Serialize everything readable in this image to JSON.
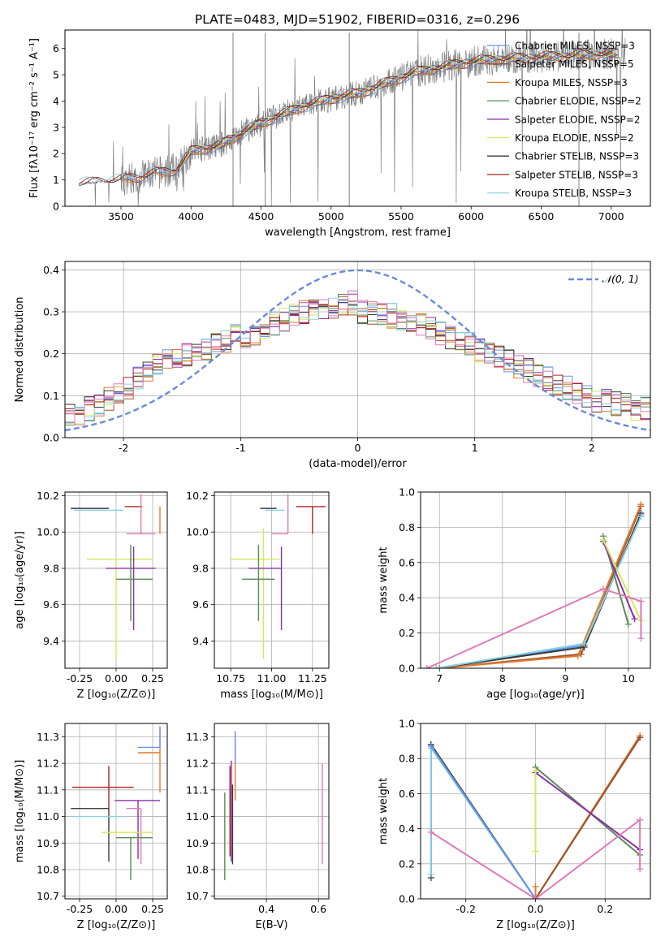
{
  "figure_title": "PLATE=0483, MJD=51902, FIBERID=0316, z=0.296",
  "colors": {
    "chabrier_miles": "#6495ed",
    "salpeter_miles": "#a0522d",
    "kroupa_miles": "#e07a2e",
    "chabrier_elodie": "#5b8a5b",
    "salpeter_elodie": "#8b2fa8",
    "kroupa_elodie": "#d4e85a",
    "chabrier_stelib": "#3a3a3a",
    "salpeter_stelib": "#b22222",
    "kroupa_stelib": "#89d2e0",
    "pink": "#e07ab8",
    "data": "#808080",
    "normal": "#6a8bd8",
    "grid": "#b0b0b0"
  },
  "chart_data": [
    {
      "type": "line",
      "panel": "spectrum",
      "title": "PLATE=0483, MJD=51902, FIBERID=0316, z=0.296",
      "xlabel": "wavelength [Angstrom, rest frame]",
      "ylabel": "Flux [fλ10⁻¹⁷ erg cm⁻² s⁻¹ A⁻¹]",
      "xlim": [
        3100,
        7280
      ],
      "ylim": [
        0,
        6.7
      ],
      "xticks": [
        3500,
        4000,
        4500,
        5000,
        5500,
        6000,
        6500,
        7000
      ],
      "yticks": [
        0,
        1,
        2,
        3,
        4,
        5,
        6
      ],
      "grid": false,
      "legend_position": "top-right",
      "continuum_wavelength": [
        3200,
        3500,
        3700,
        3900,
        4000,
        4200,
        4400,
        4600,
        4800,
        5000,
        5200,
        5400,
        5600,
        5800,
        6000,
        6200,
        6400,
        6600,
        6800,
        7000,
        7100
      ],
      "continuum_flux": [
        0.85,
        1.0,
        1.2,
        1.4,
        2.1,
        2.3,
        2.9,
        3.4,
        3.8,
        4.1,
        4.3,
        4.7,
        5.1,
        5.3,
        5.5,
        5.6,
        5.65,
        5.7,
        5.75,
        5.8,
        5.8
      ],
      "legend": [
        "Chabrier MILES, NSSP=3",
        "Salpeter MILES, NSSP=5",
        "Kroupa MILES, NSSP=3",
        "Chabrier ELODIE, NSSP=2",
        "Salpeter ELODIE, NSSP=2",
        "Kroupa ELODIE, NSSP=2",
        "Chabrier STELIB, NSSP=3",
        "Salpeter STELIB, NSSP=3",
        "Kroupa STELIB, NSSP=3"
      ]
    },
    {
      "type": "line",
      "panel": "residuals",
      "xlabel": "(data-model)/error",
      "ylabel": "Normed distribution",
      "xlim": [
        -2.5,
        2.5
      ],
      "ylim": [
        0,
        0.42
      ],
      "xticks": [
        -2,
        -1,
        0,
        1,
        2
      ],
      "yticks": [
        0.0,
        0.1,
        0.2,
        0.3,
        0.4
      ],
      "grid": true,
      "legend_position": "top-right",
      "legend": [
        "𝒩(0, 1)"
      ],
      "bin_width": 0.1,
      "base_shape": [
        0.05,
        0.06,
        0.07,
        0.08,
        0.09,
        0.11,
        0.12,
        0.14,
        0.16,
        0.17,
        0.18,
        0.19,
        0.2,
        0.2,
        0.21,
        0.22,
        0.23,
        0.24,
        0.24,
        0.25,
        0.26,
        0.27,
        0.28,
        0.29,
        0.3,
        0.3,
        0.31,
        0.31,
        0.32,
        0.32,
        0.3,
        0.3,
        0.29,
        0.29,
        0.28,
        0.28,
        0.27,
        0.26,
        0.25,
        0.24,
        0.23,
        0.22,
        0.21,
        0.2,
        0.19,
        0.18,
        0.17,
        0.16,
        0.15,
        0.14,
        0.13,
        0.12,
        0.11,
        0.1,
        0.09,
        0.09,
        0.08,
        0.08,
        0.07,
        0.07
      ]
    },
    {
      "type": "scatter",
      "panel": "age_vs_Z",
      "xlabel": "Z [log₁₀(Z/Z⊙)]",
      "ylabel": "age  [log₁₀(age/yr)]",
      "xlim": [
        -0.35,
        0.35
      ],
      "ylim": [
        9.25,
        10.22
      ],
      "xticks": [
        -0.25,
        0.0,
        0.25
      ],
      "yticks": [
        9.4,
        9.6,
        9.8,
        10.0,
        10.2
      ],
      "grid": true,
      "points": [
        {
          "x": -0.05,
          "y": 10.13,
          "xerr": [
            0.26,
            0.0
          ],
          "yerr": [
            0.0,
            0.0
          ],
          "color": "chabrier_stelib"
        },
        {
          "x": 0.05,
          "y": 10.12,
          "xerr": [
            0.34,
            0.0
          ],
          "yerr": [
            0.0,
            0.0
          ],
          "color": "kroupa_stelib"
        },
        {
          "x": 0.3,
          "y": 10.14,
          "xerr": [
            0.0,
            0.0
          ],
          "yerr": [
            0.15,
            0.0
          ],
          "color": "kroupa_miles"
        },
        {
          "x": 0.18,
          "y": 10.14,
          "xerr": [
            0.12,
            0.0
          ],
          "yerr": [
            0.0,
            0.0
          ],
          "color": "salpeter_stelib"
        },
        {
          "x": 0.17,
          "y": 9.99,
          "xerr": [
            0.1,
            0.1
          ],
          "yerr": [
            0.0,
            0.22
          ],
          "color": "pink"
        },
        {
          "x": 0.0,
          "y": 9.85,
          "xerr": [
            0.2,
            0.25
          ],
          "yerr": [
            0.55,
            0.0
          ],
          "color": "kroupa_elodie"
        },
        {
          "x": 0.12,
          "y": 9.8,
          "xerr": [
            0.19,
            0.15
          ],
          "yerr": [
            0.34,
            0.12
          ],
          "color": "salpeter_elodie"
        },
        {
          "x": 0.1,
          "y": 9.74,
          "xerr": [
            0.1,
            0.15
          ],
          "yerr": [
            0.23,
            0.19
          ],
          "color": "chabrier_elodie"
        }
      ]
    },
    {
      "type": "scatter",
      "panel": "age_vs_mass",
      "xlabel": "mass [log₁₀(M/M⊙)]",
      "ylabel": "",
      "xlim": [
        10.65,
        11.35
      ],
      "ylim": [
        9.25,
        10.22
      ],
      "xticks": [
        10.75,
        11.0,
        11.25
      ],
      "yticks": [
        9.4,
        9.6,
        9.8,
        10.0,
        10.2
      ],
      "grid": true,
      "points": [
        {
          "x": 11.03,
          "y": 10.13,
          "xerr": [
            0.1,
            0.0
          ],
          "yerr": [
            0.0,
            0.0
          ],
          "color": "chabrier_stelib"
        },
        {
          "x": 11.08,
          "y": 10.12,
          "xerr": [
            0.12,
            0.0
          ],
          "yerr": [
            0.0,
            0.0
          ],
          "color": "kroupa_stelib"
        },
        {
          "x": 11.25,
          "y": 10.14,
          "xerr": [
            0.1,
            0.08
          ],
          "yerr": [
            0.15,
            0.0
          ],
          "color": "salpeter_stelib"
        },
        {
          "x": 11.1,
          "y": 9.99,
          "xerr": [
            0.1,
            0.0
          ],
          "yerr": [
            0.0,
            0.22
          ],
          "color": "pink"
        },
        {
          "x": 10.95,
          "y": 9.85,
          "xerr": [
            0.2,
            0.1
          ],
          "yerr": [
            0.55,
            0.17
          ],
          "color": "kroupa_elodie"
        },
        {
          "x": 11.06,
          "y": 9.8,
          "xerr": [
            0.2,
            0.0
          ],
          "yerr": [
            0.34,
            0.12
          ],
          "color": "salpeter_elodie"
        },
        {
          "x": 10.92,
          "y": 9.74,
          "xerr": [
            0.1,
            0.1
          ],
          "yerr": [
            0.23,
            0.19
          ],
          "color": "chabrier_elodie"
        }
      ]
    },
    {
      "type": "line",
      "panel": "weight_vs_age",
      "xlabel": "age  [log₁₀(age/yr)]",
      "ylabel": "mass weight",
      "xlim": [
        6.7,
        10.35
      ],
      "ylim": [
        0,
        1.0
      ],
      "xticks": [
        7,
        8,
        9,
        10
      ],
      "yticks": [
        0.0,
        0.2,
        0.4,
        0.6,
        0.8,
        1.0
      ],
      "grid": true,
      "series": [
        {
          "color": "chabrier_miles",
          "x": [
            7.0,
            9.3,
            10.2
          ],
          "y": [
            0.0,
            0.13,
            0.87
          ]
        },
        {
          "color": "salpeter_miles",
          "x": [
            7.0,
            9.25,
            10.2
          ],
          "y": [
            0.0,
            0.08,
            0.92
          ]
        },
        {
          "color": "kroupa_miles",
          "x": [
            7.0,
            9.2,
            10.2
          ],
          "y": [
            0.0,
            0.07,
            0.93
          ]
        },
        {
          "color": "chabrier_stelib",
          "x": [
            6.95,
            9.3,
            10.2
          ],
          "y": [
            0.0,
            0.12,
            0.88
          ]
        },
        {
          "color": "kroupa_stelib",
          "x": [
            6.95,
            9.3,
            10.2
          ],
          "y": [
            0.0,
            0.14,
            0.86
          ]
        },
        {
          "color": "chabrier_elodie",
          "x": [
            9.6,
            10.0
          ],
          "y": [
            0.75,
            0.25
          ]
        },
        {
          "color": "salpeter_elodie",
          "x": [
            9.6,
            10.1
          ],
          "y": [
            0.72,
            0.28
          ]
        },
        {
          "color": "kroupa_elodie",
          "x": [
            9.6,
            10.2
          ],
          "y": [
            0.73,
            0.27
          ]
        },
        {
          "color": "pink",
          "x": [
            6.8,
            9.6,
            10.2,
            10.2
          ],
          "y": [
            0.0,
            0.45,
            0.38,
            0.17
          ]
        }
      ]
    },
    {
      "type": "scatter",
      "panel": "mass_vs_Z",
      "xlabel": "Z [log₁₀(Z/Z⊙)]",
      "ylabel": "mass [log₁₀(M/M⊙)]",
      "xlim": [
        -0.35,
        0.35
      ],
      "ylim": [
        10.69,
        11.35
      ],
      "xticks": [
        -0.25,
        0.0,
        0.25
      ],
      "yticks": [
        10.7,
        10.8,
        10.9,
        11.0,
        11.1,
        11.2,
        11.3
      ],
      "grid": true,
      "points": [
        {
          "x": 0.3,
          "y": 11.24,
          "xerr": [
            0.15,
            0.0
          ],
          "yerr": [
            0.15,
            0.1
          ],
          "color": "kroupa_miles"
        },
        {
          "x": 0.3,
          "y": 11.26,
          "xerr": [
            0.15,
            0.0
          ],
          "yerr": [
            0.0,
            0.07
          ],
          "color": "chabrier_miles"
        },
        {
          "x": -0.05,
          "y": 11.11,
          "xerr": [
            0.25,
            0.17
          ],
          "yerr": [
            0.08,
            0.08
          ],
          "color": "salpeter_stelib"
        },
        {
          "x": 0.15,
          "y": 11.06,
          "xerr": [
            0.16,
            0.15
          ],
          "yerr": [
            0.22,
            0.0
          ],
          "color": "salpeter_elodie"
        },
        {
          "x": -0.05,
          "y": 11.03,
          "xerr": [
            0.26,
            0.0
          ],
          "yerr": [
            0.2,
            0.0
          ],
          "color": "chabrier_stelib"
        },
        {
          "x": 0.17,
          "y": 11.03,
          "xerr": [
            0.1,
            0.0
          ],
          "yerr": [
            0.21,
            0.0
          ],
          "color": "pink"
        },
        {
          "x": 0.05,
          "y": 11.0,
          "xerr": [
            0.35,
            0.0
          ],
          "yerr": [
            0.0,
            0.0
          ],
          "color": "kroupa_stelib"
        },
        {
          "x": 0.05,
          "y": 10.94,
          "xerr": [
            0.15,
            0.2
          ],
          "yerr": [
            0.0,
            0.0
          ],
          "color": "kroupa_elodie"
        },
        {
          "x": 0.1,
          "y": 10.92,
          "xerr": [
            0.1,
            0.15
          ],
          "yerr": [
            0.16,
            0.0
          ],
          "color": "chabrier_elodie"
        }
      ]
    },
    {
      "type": "scatter",
      "panel": "mass_vs_EBV",
      "xlabel": "E(B-V)",
      "ylabel": "",
      "xlim": [
        0.2,
        0.64
      ],
      "ylim": [
        10.69,
        11.35
      ],
      "xticks": [
        0.4,
        0.6
      ],
      "yticks": [
        10.7,
        10.8,
        10.9,
        11.0,
        11.1,
        11.2,
        11.3
      ],
      "grid": true,
      "points": [
        {
          "x": 0.28,
          "y": 11.2,
          "xerr": [
            0.0,
            0.0
          ],
          "yerr": [
            0.14,
            0.12
          ],
          "color": "kroupa_miles"
        },
        {
          "x": 0.28,
          "y": 11.25,
          "xerr": [
            0.0,
            0.0
          ],
          "yerr": [
            0.05,
            0.07
          ],
          "color": "chabrier_miles"
        },
        {
          "x": 0.265,
          "y": 11.0,
          "xerr": [
            0.0,
            0.0
          ],
          "yerr": [
            0.17,
            0.21
          ],
          "color": "salpeter_elodie"
        },
        {
          "x": 0.26,
          "y": 11.0,
          "xerr": [
            0.0,
            0.0
          ],
          "yerr": [
            0.15,
            0.19
          ],
          "color": "salpeter_stelib"
        },
        {
          "x": 0.27,
          "y": 11.0,
          "xerr": [
            0.0,
            0.0
          ],
          "yerr": [
            0.18,
            0.12
          ],
          "color": "chabrier_stelib"
        },
        {
          "x": 0.24,
          "y": 10.92,
          "xerr": [
            0.0,
            0.0
          ],
          "yerr": [
            0.16,
            0.17
          ],
          "color": "chabrier_elodie"
        },
        {
          "x": 0.615,
          "y": 11.01,
          "xerr": [
            0.0,
            0.0
          ],
          "yerr": [
            0.19,
            0.19
          ],
          "color": "pink"
        }
      ]
    },
    {
      "type": "line",
      "panel": "weight_vs_Z",
      "xlabel": "Z [log₁₀(Z/Z⊙)]",
      "ylabel": "mass weight",
      "xlim": [
        -0.33,
        0.33
      ],
      "ylim": [
        0,
        1.0
      ],
      "xticks": [
        -0.2,
        0.0,
        0.2
      ],
      "yticks": [
        0.0,
        0.2,
        0.4,
        0.6,
        0.8,
        1.0
      ],
      "grid": true,
      "series": [
        {
          "color": "chabrier_stelib",
          "x": [
            -0.3,
            -0.3,
            0.0,
            0.3
          ],
          "y": [
            0.12,
            0.88,
            0.0,
            0.92
          ]
        },
        {
          "color": "kroupa_stelib",
          "x": [
            -0.3,
            -0.3,
            0.0
          ],
          "y": [
            0.14,
            0.86,
            0.0
          ]
        },
        {
          "color": "chabrier_miles",
          "x": [
            -0.3,
            0.0
          ],
          "y": [
            0.87,
            0.0
          ]
        },
        {
          "color": "kroupa_miles",
          "x": [
            0.0,
            0.0,
            0.3
          ],
          "y": [
            0.07,
            0.0,
            0.93
          ]
        },
        {
          "color": "salpeter_miles",
          "x": [
            0.0,
            0.3
          ],
          "y": [
            0.0,
            0.92
          ]
        },
        {
          "color": "chabrier_elodie",
          "x": [
            0.0,
            0.3
          ],
          "y": [
            0.75,
            0.25
          ]
        },
        {
          "color": "salpeter_elodie",
          "x": [
            0.0,
            0.3
          ],
          "y": [
            0.72,
            0.28
          ]
        },
        {
          "color": "kroupa_elodie",
          "x": [
            0.0,
            0.0
          ],
          "y": [
            0.27,
            0.73
          ]
        },
        {
          "color": "pink",
          "x": [
            -0.3,
            0.0,
            0.3,
            0.3
          ],
          "y": [
            0.38,
            0.0,
            0.45,
            0.17
          ]
        }
      ]
    }
  ]
}
